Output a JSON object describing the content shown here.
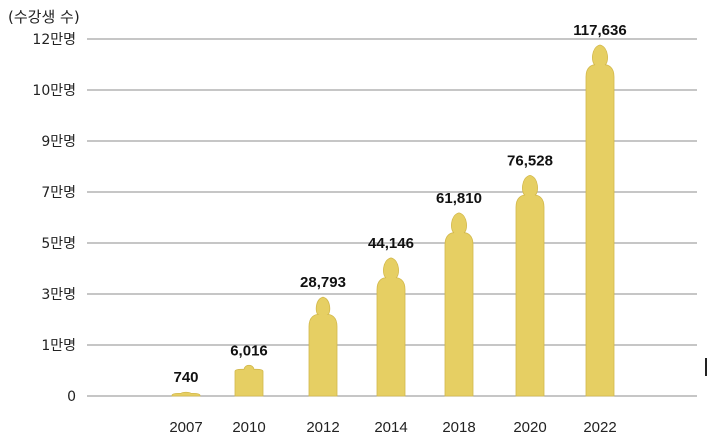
{
  "unit_label": "(수강생 수)",
  "colors": {
    "bar": "#e6cf63",
    "grid": "#8c8c8c"
  },
  "chart_data": {
    "type": "bar",
    "categories": [
      "2007",
      "2010",
      "2012",
      "2014",
      "2018",
      "2020",
      "2022"
    ],
    "values": [
      740,
      6016,
      28793,
      44146,
      61810,
      76528,
      117636
    ],
    "data_labels": [
      "740",
      "6,016",
      "28,793",
      "44,146",
      "61,810",
      "76,528",
      "117,636"
    ],
    "y_ticks": [
      {
        "value": 0,
        "label": "0"
      },
      {
        "value": 10000,
        "label": "1만명"
      },
      {
        "value": 30000,
        "label": "3만명"
      },
      {
        "value": 50000,
        "label": "5만명"
      },
      {
        "value": 70000,
        "label": "7만명"
      },
      {
        "value": 90000,
        "label": "9만명"
      },
      {
        "value": 100000,
        "label": "10만명"
      },
      {
        "value": 120000,
        "label": "12만명"
      }
    ],
    "ylabel": "(수강생 수)",
    "grid": true,
    "legend": "none"
  }
}
